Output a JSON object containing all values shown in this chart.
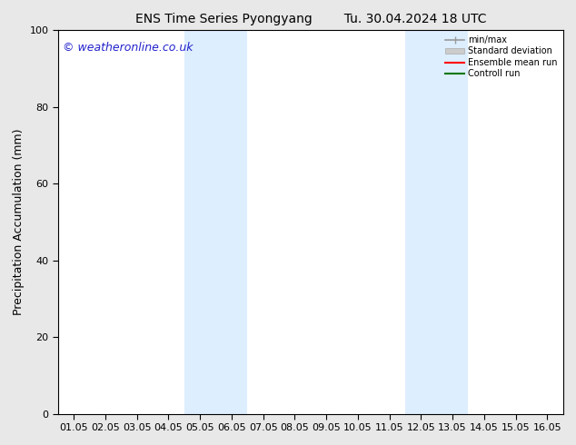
{
  "title_left": "ENS Time Series Pyongyang",
  "title_right": "Tu. 30.04.2024 18 UTC",
  "ylabel": "Precipitation Accumulation (mm)",
  "ylim": [
    0,
    100
  ],
  "yticks": [
    0,
    20,
    40,
    60,
    80,
    100
  ],
  "xlim": [
    0.5,
    16.5
  ],
  "xtick_labels": [
    "01.05",
    "02.05",
    "03.05",
    "04.05",
    "05.05",
    "06.05",
    "07.05",
    "08.05",
    "09.05",
    "10.05",
    "11.05",
    "12.05",
    "13.05",
    "14.05",
    "15.05",
    "16.05"
  ],
  "xtick_positions": [
    1,
    2,
    3,
    4,
    5,
    6,
    7,
    8,
    9,
    10,
    11,
    12,
    13,
    14,
    15,
    16
  ],
  "shaded_regions": [
    {
      "xmin": 4.5,
      "xmax": 6.5,
      "color": "#ddeeff"
    },
    {
      "xmin": 11.5,
      "xmax": 13.5,
      "color": "#ddeeff"
    }
  ],
  "watermark_text": "© weatheronline.co.uk",
  "watermark_color": "#2222cc",
  "legend_labels": [
    "min/max",
    "Standard deviation",
    "Ensemble mean run",
    "Controll run"
  ],
  "legend_colors": [
    "#999999",
    "#cccccc",
    "#ff0000",
    "#007700"
  ],
  "bg_color": "#e8e8e8",
  "plot_bg_color": "#ffffff",
  "title_fontsize": 10,
  "label_fontsize": 9,
  "tick_fontsize": 8,
  "watermark_fontsize": 9
}
